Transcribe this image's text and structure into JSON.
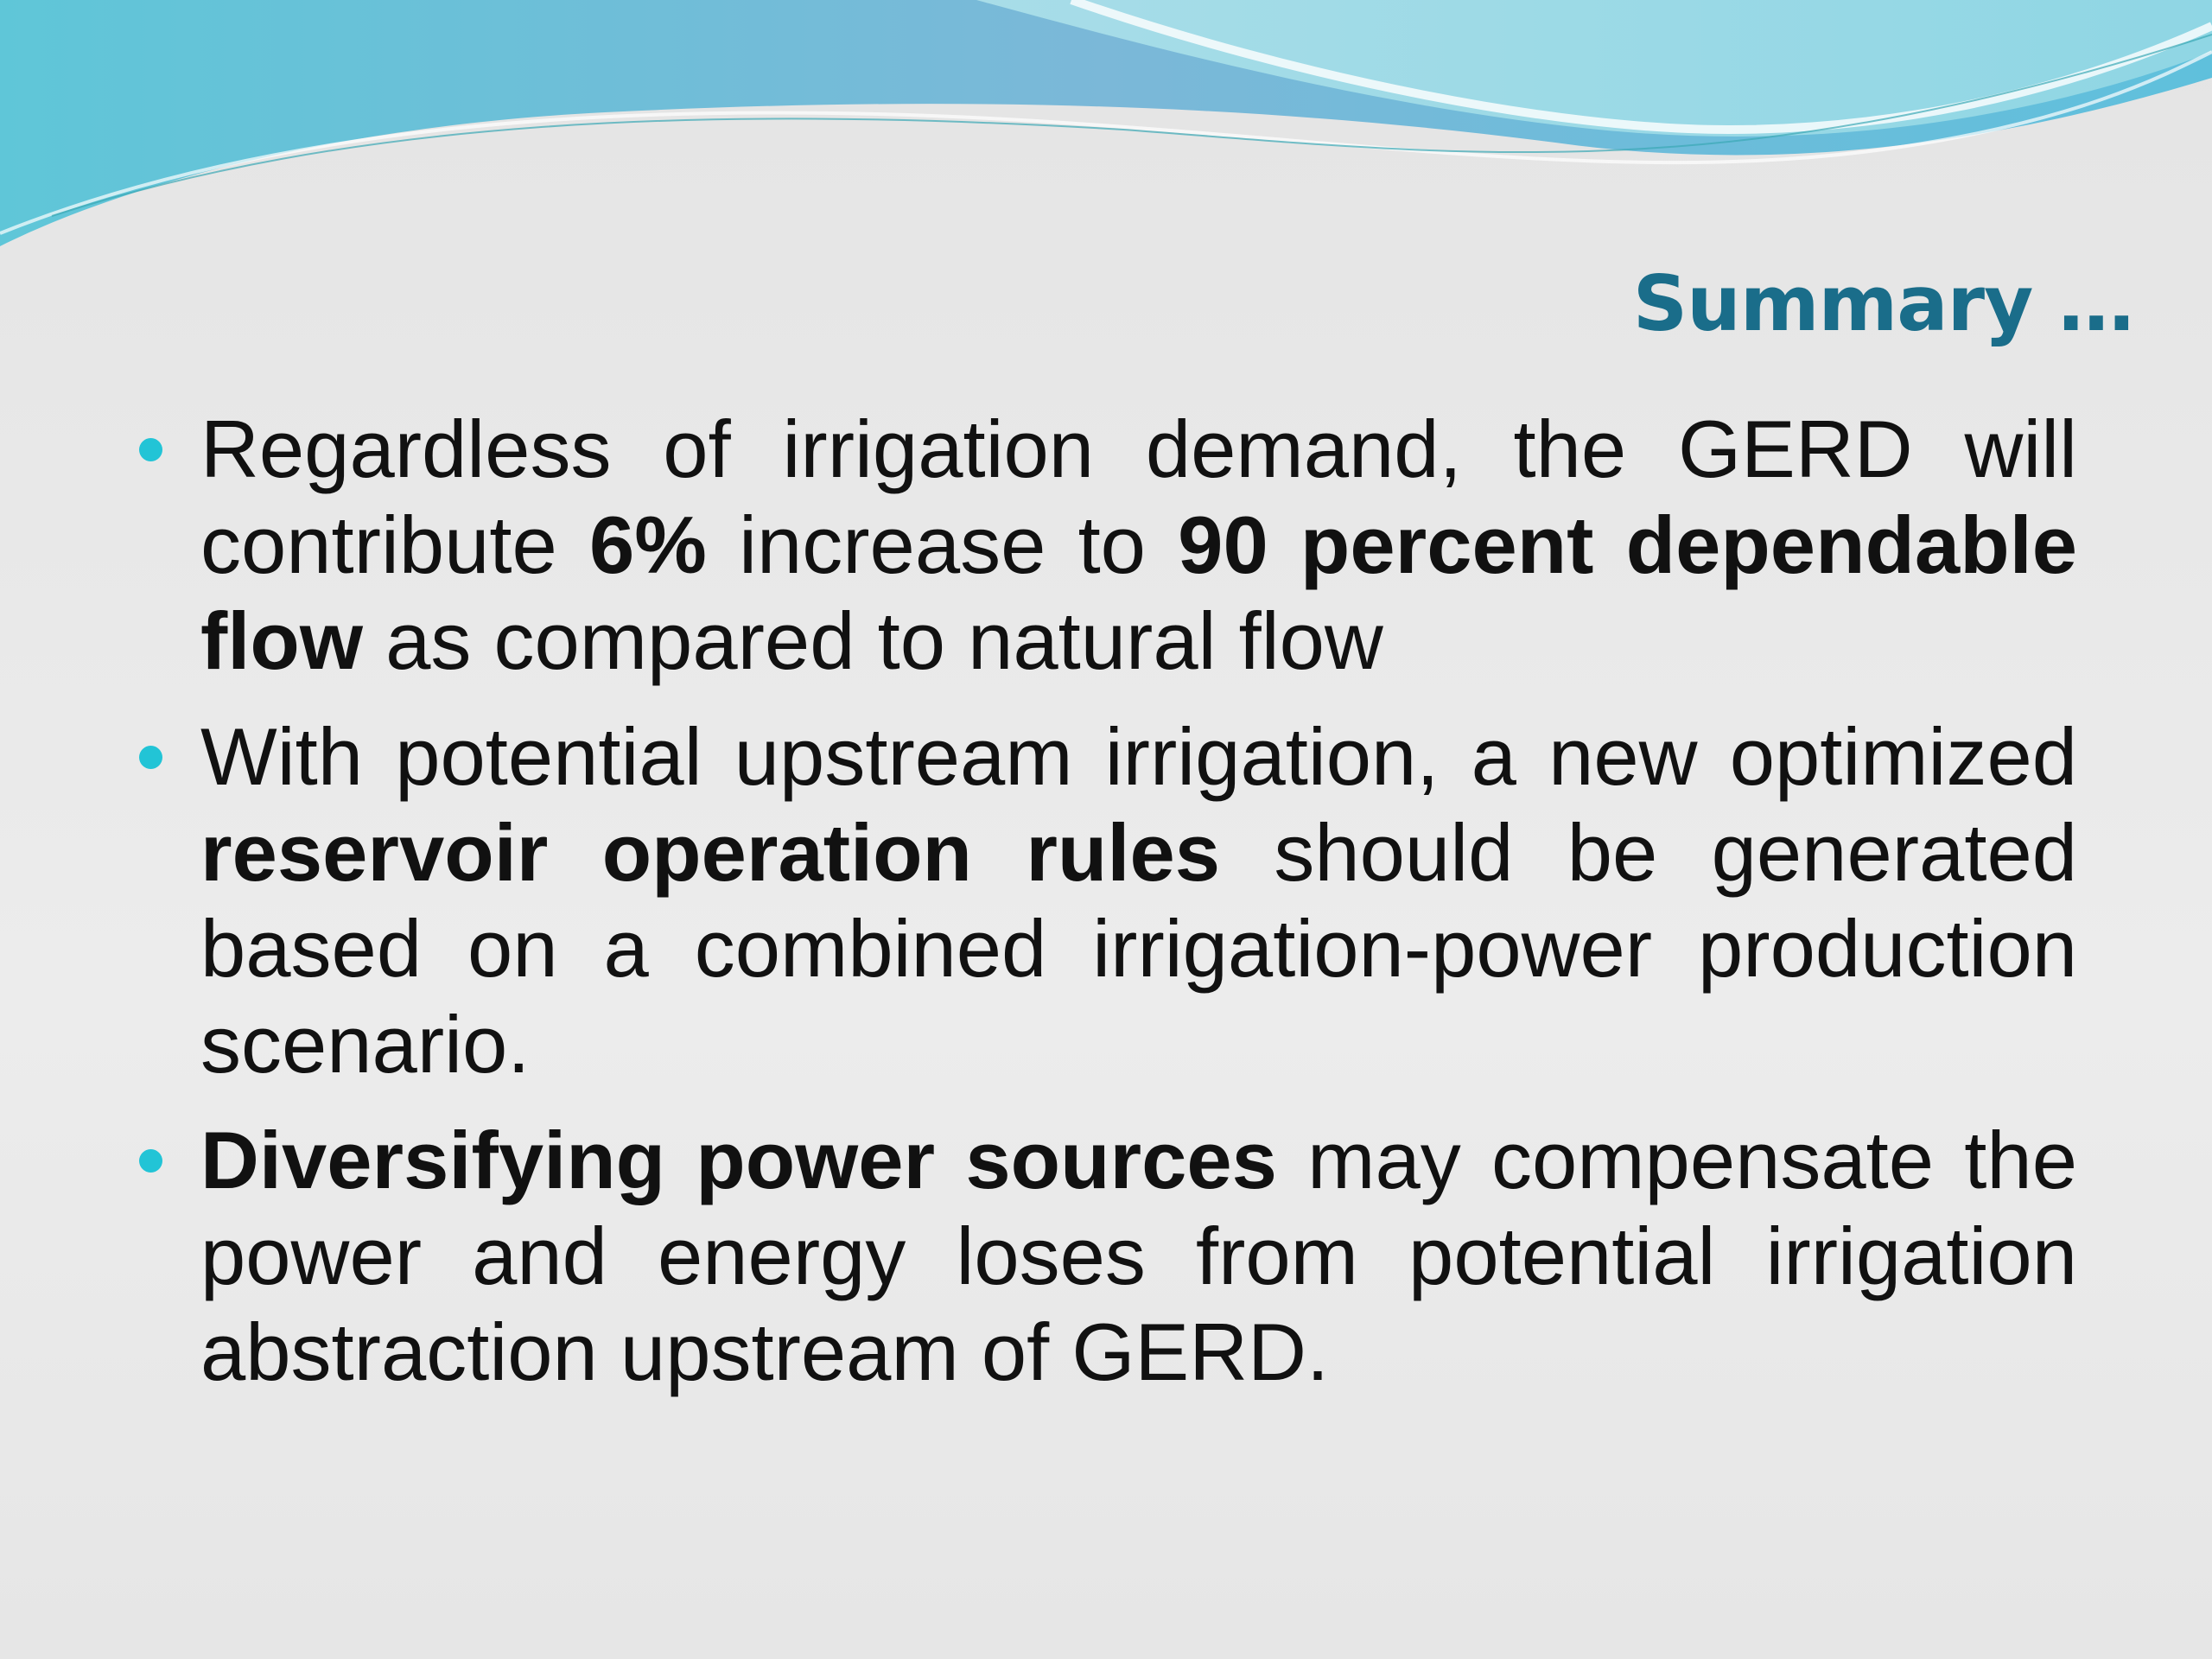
{
  "title": "Summary …",
  "bullets": [
    {
      "runs": [
        {
          "text": "Regardless of irrigation demand, the GERD will contribute ",
          "bold": false
        },
        {
          "text": "6%",
          "bold": true
        },
        {
          "text": " increase to ",
          "bold": false
        },
        {
          "text": "90 percent dependable flow",
          "bold": true
        },
        {
          "text": " as compared to natural flow",
          "bold": false
        }
      ]
    },
    {
      "runs": [
        {
          "text": "With potential upstream irrigation, a new optimized ",
          "bold": false
        },
        {
          "text": "reservoir operation rules",
          "bold": true
        },
        {
          "text": " should be generated based on a combined irrigation-power production scenario.",
          "bold": false
        }
      ]
    },
    {
      "runs": [
        {
          "text": "Diversifying power sources",
          "bold": true
        },
        {
          "text": " may compensate the power and energy loses from potential irrigation abstraction upstream of GERD.",
          "bold": false
        }
      ]
    }
  ]
}
